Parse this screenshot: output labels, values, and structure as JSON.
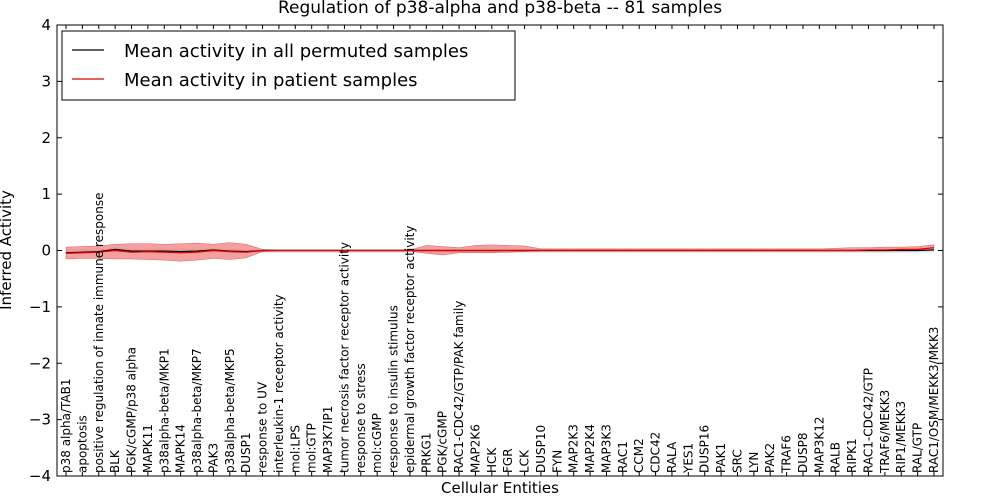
{
  "chart_data": {
    "type": "line",
    "title": "Regulation of p38-alpha and p38-beta -- 81 samples",
    "xlabel": "Cellular Entities",
    "ylabel": "Inferred Activity",
    "ylim": [
      -4,
      4
    ],
    "yticks": [
      "4",
      "3",
      "2",
      "1",
      "0",
      "−1",
      "−2",
      "−3",
      "−4"
    ],
    "legend_position": "top-left",
    "categories": [
      "p38 alpha/TAB1",
      "apoptosis",
      "positive regulation of innate immune response",
      "BLK",
      "PGK/cGMP/p38 alpha",
      "MAPK11",
      "p38alpha-beta/MKP1",
      "MAPK14",
      "p38alpha-beta/MKP7",
      "PAK3",
      "p38alpha-beta/MKP5",
      "DUSP1",
      "response to UV",
      "interleukin-1 receptor activity",
      "mol:LPS",
      "mol:GTP",
      "MAP3K7IP1",
      "tumor necrosis factor receptor activity",
      "response to stress",
      "mol:cGMP",
      "response to insulin stimulus",
      "epidermal growth factor receptor activity",
      "PRKG1",
      "PGK/cGMP",
      "RAC1-CDC42/GTP/PAK family",
      "MAP2K6",
      "HCK",
      "FGR",
      "LCK",
      "DUSP10",
      "FYN",
      "MAP2K3",
      "MAP2K4",
      "MAP3K3",
      "RAC1",
      "CCM2",
      "CDC42",
      "RALA",
      "YES1",
      "DUSP16",
      "PAK1",
      "SRC",
      "LYN",
      "PAK2",
      "TRAF6",
      "DUSP8",
      "MAP3K12",
      "RALB",
      "RIPK1",
      "RAC1-CDC42/GTP",
      "TRAF6/MEKK3",
      "RIP1/MEKK3",
      "RAL/GTP",
      "RAC1/OSM/MEKK3/MKK3"
    ],
    "series": [
      {
        "name": "Mean activity in all permuted samples",
        "color": "#000000",
        "values": [
          -0.04,
          -0.03,
          -0.02,
          0.02,
          -0.01,
          -0.01,
          -0.01,
          -0.02,
          -0.01,
          0.01,
          -0.01,
          -0.02,
          0,
          0,
          0,
          0,
          0,
          0,
          0,
          0,
          0,
          0,
          0,
          0,
          0,
          0,
          0,
          0,
          0,
          0,
          0,
          0,
          0,
          0,
          0,
          0,
          0,
          0,
          0,
          0,
          0,
          0,
          0,
          0,
          0,
          0,
          0,
          0,
          0,
          0,
          0,
          0,
          0,
          0.01
        ],
        "band_lower": [
          -0.06,
          -0.05,
          -0.04,
          -0.03,
          -0.04,
          -0.04,
          -0.05,
          -0.06,
          -0.05,
          -0.04,
          -0.05,
          -0.05,
          -0.04,
          -0.04,
          -0.04,
          -0.04,
          -0.04,
          -0.04,
          -0.04,
          -0.04,
          -0.04,
          -0.04,
          -0.04,
          -0.04,
          -0.04,
          -0.04,
          -0.04,
          -0.04,
          -0.04,
          -0.04,
          -0.04,
          -0.04,
          -0.04,
          -0.04,
          -0.04,
          -0.04,
          -0.04,
          -0.04,
          -0.04,
          -0.04,
          -0.04,
          -0.04,
          -0.04,
          -0.04,
          -0.04,
          -0.04,
          -0.04,
          -0.04,
          -0.04,
          -0.04,
          -0.04,
          -0.04,
          -0.04,
          -0.03
        ],
        "band_upper": [
          0.02,
          0.02,
          0.03,
          0.05,
          0.03,
          0.03,
          0.03,
          0.03,
          0.03,
          0.04,
          0.03,
          0.03,
          0.02,
          0.02,
          0.02,
          0.02,
          0.02,
          0.02,
          0.02,
          0.02,
          0.02,
          0.02,
          0.02,
          0.02,
          0.02,
          0.02,
          0.02,
          0.02,
          0.02,
          0.02,
          0.02,
          0.02,
          0.02,
          0.02,
          0.02,
          0.02,
          0.02,
          0.02,
          0.02,
          0.02,
          0.02,
          0.02,
          0.02,
          0.02,
          0.02,
          0.02,
          0.02,
          0.02,
          0.02,
          0.02,
          0.02,
          0.02,
          0.02,
          0.04
        ],
        "band_color": "#cccccc"
      },
      {
        "name": "Mean activity in patient samples",
        "color": "#e00000",
        "values": [
          -0.05,
          -0.04,
          -0.03,
          0.0,
          -0.03,
          -0.02,
          -0.03,
          -0.04,
          -0.03,
          0.0,
          -0.02,
          -0.03,
          0.0,
          0.0,
          0.0,
          0.0,
          0.0,
          0.0,
          0.0,
          0.0,
          0.0,
          0.0,
          0.0,
          0.0,
          0.0,
          0.0,
          0.0,
          0.0,
          0.0,
          0.0,
          0.0,
          0.0,
          0.0,
          0.0,
          0.0,
          0.0,
          0.0,
          0.0,
          0.0,
          0.0,
          0.0,
          0.0,
          0.0,
          0.0,
          0.0,
          0.0,
          0.0,
          0.0,
          0.0,
          0.01,
          0.01,
          0.02,
          0.02,
          0.05
        ],
        "band_lower": [
          -0.15,
          -0.14,
          -0.14,
          -0.15,
          -0.15,
          -0.16,
          -0.17,
          -0.19,
          -0.17,
          -0.14,
          -0.16,
          -0.13,
          -0.02,
          -0.01,
          -0.01,
          -0.01,
          -0.01,
          -0.01,
          -0.01,
          -0.01,
          -0.01,
          -0.01,
          -0.05,
          -0.08,
          -0.04,
          -0.04,
          -0.04,
          -0.03,
          -0.02,
          -0.01,
          -0.01,
          -0.01,
          -0.01,
          -0.01,
          -0.01,
          -0.01,
          -0.01,
          -0.01,
          -0.01,
          -0.01,
          -0.01,
          -0.01,
          -0.01,
          -0.01,
          -0.01,
          -0.01,
          -0.01,
          -0.01,
          -0.01,
          -0.01,
          -0.01,
          0.0,
          0.0,
          0.02
        ],
        "band_upper": [
          0.06,
          0.07,
          0.08,
          0.11,
          0.12,
          0.12,
          0.11,
          0.12,
          0.13,
          0.11,
          0.14,
          0.11,
          0.02,
          0.01,
          0.01,
          0.01,
          0.01,
          0.01,
          0.01,
          0.01,
          0.01,
          0.01,
          0.09,
          0.07,
          0.05,
          0.09,
          0.1,
          0.09,
          0.08,
          0.03,
          0.03,
          0.03,
          0.03,
          0.03,
          0.03,
          0.03,
          0.03,
          0.03,
          0.03,
          0.03,
          0.03,
          0.03,
          0.03,
          0.03,
          0.03,
          0.03,
          0.03,
          0.04,
          0.05,
          0.05,
          0.06,
          0.06,
          0.07,
          0.1
        ],
        "band_color": "#f08080"
      }
    ]
  }
}
